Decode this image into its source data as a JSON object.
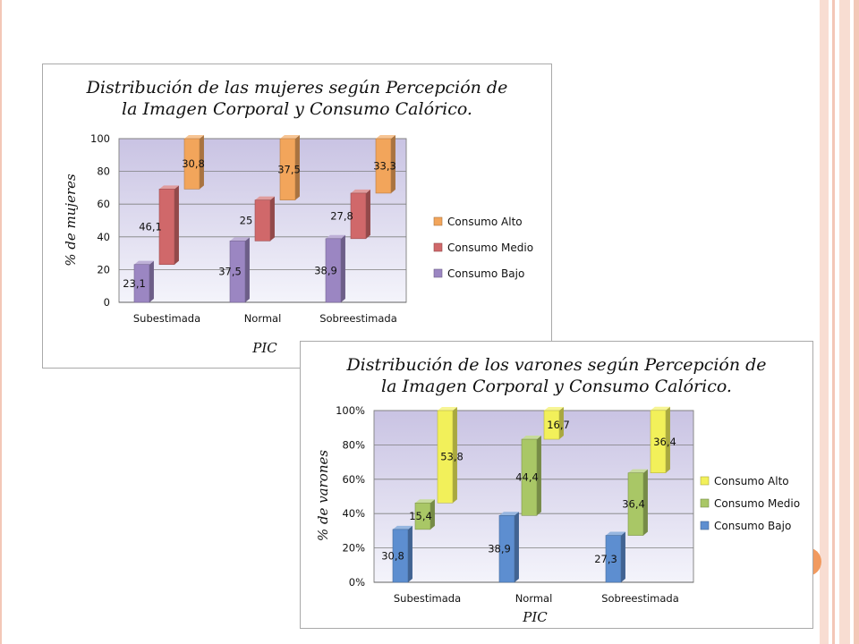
{
  "slide": {
    "accent_colors": [
      "#f3c7b7",
      "#f19a5f",
      "#f8ddd2"
    ]
  },
  "chart_data": [
    {
      "type": "bar",
      "stacked": "floating",
      "title": "Distribución de las mujeres según Percepción de\nla Imagen Corporal y Consumo Calórico.",
      "xlabel": "PIC",
      "ylabel": "% de mujeres",
      "categories": [
        "Subestimada",
        "Normal",
        "Sobreestimada"
      ],
      "ylim": [
        0,
        100
      ],
      "yticks": [
        "0",
        "20",
        "40",
        "60",
        "80",
        "100"
      ],
      "grid": true,
      "legend_position": "right",
      "series": [
        {
          "name": "Consumo Bajo",
          "values": [
            23.1,
            37.5,
            38.9
          ],
          "labels": [
            "23,1",
            "37,5",
            "38,9"
          ],
          "color": "#9b86c2"
        },
        {
          "name": "Consumo Medio",
          "values": [
            46.1,
            25,
            27.8
          ],
          "labels": [
            "46,1",
            "25",
            "27,8"
          ],
          "color": "#d0686a"
        },
        {
          "name": "Consumo Alto",
          "values": [
            30.8,
            37.5,
            33.3
          ],
          "labels": [
            "30,8",
            "37,5",
            "33,3"
          ],
          "color": "#f2a55b"
        }
      ],
      "legend_order": [
        "Consumo Alto",
        "Consumo Medio",
        "Consumo Bajo"
      ]
    },
    {
      "type": "bar",
      "stacked": "floating",
      "title": "Distribución de los varones según Percepción de\nla Imagen Corporal y Consumo Calórico.",
      "xlabel": "PIC",
      "ylabel": "% de varones",
      "categories": [
        "Subestimada",
        "Normal",
        "Sobreestimada"
      ],
      "ylim": [
        0,
        100
      ],
      "yticks": [
        "0%",
        "20%",
        "40%",
        "60%",
        "80%",
        "100%"
      ],
      "grid": true,
      "legend_position": "right",
      "series": [
        {
          "name": "Consumo Bajo",
          "values": [
            30.8,
            38.9,
            27.3
          ],
          "labels": [
            "30,8",
            "38,9",
            "27,3"
          ],
          "color": "#5d8ed0"
        },
        {
          "name": "Consumo Medio",
          "values": [
            15.4,
            44.4,
            36.4
          ],
          "labels": [
            "15,4",
            "44,4",
            "36,4"
          ],
          "color": "#a9c766"
        },
        {
          "name": "Consumo Alto",
          "values": [
            53.8,
            16.7,
            36.4
          ],
          "labels": [
            "53,8",
            "16,7",
            "36,4"
          ],
          "color": "#f2f05a"
        }
      ],
      "legend_order": [
        "Consumo Alto",
        "Consumo Medio",
        "Consumo Bajo"
      ]
    }
  ]
}
